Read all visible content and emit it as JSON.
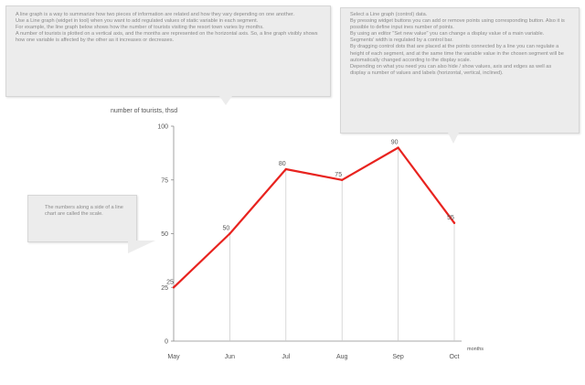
{
  "callouts": {
    "left_top": [
      "A line graph is a way to summarize how two pieces of information are related and how they vary depending on one another.",
      "Use a Line graph (widget in tool) when you want to add regulated values of static variable in each segment.",
      "For example, the line graph below shows how the number of tourists visiting the resort town varies by months.",
      "A number of tourists is plotted on a vertical axis, and the months are represented on the horizontal axis. So, a line graph visibly shows how one variable is affected by the other as it increases or decreases."
    ],
    "right_top": [
      "Select a Line graph (control) data.",
      "By pressing widget buttons you can add or remove points using corresponding button. Also it is possible to define input ines number of points.",
      "By using an editor \"Set new value\" you can change a display value of a main variable. Segments' width is regulated by a control bar.",
      "By dragging control dots that are placed at the points connected by a line you can regulate a height of each segment, and at the same time the variable value in the chosen segment will be automatically changed according to the display scale.",
      "Depending on what you need you can also hide / show values, axis and edges as well as display a number of values and labels (horizontal, vertical, inclined)."
    ],
    "axis": [
      "The numbers along a side of a line chart are called the scale."
    ]
  },
  "colors": {
    "line": "#e8231f",
    "axis": "#8c8c8c",
    "guide": "#c8c8c8",
    "text": "#555555",
    "callout_bg": "#ececec"
  },
  "chart_data": {
    "type": "line",
    "title": "",
    "ylabel": "number of tourists, thsd",
    "xlabel": "months",
    "categories": [
      "May",
      "Jun",
      "Jul",
      "Aug",
      "Sep",
      "Oct"
    ],
    "series": [
      {
        "values": [
          25,
          50,
          80,
          75,
          90,
          55
        ]
      }
    ],
    "data_labels": [
      "25",
      "50",
      "80",
      "75",
      "90",
      "55"
    ],
    "yticks": [
      0,
      25,
      50,
      75,
      100
    ],
    "ylim": [
      0,
      100
    ],
    "grid": false,
    "guides": "vertical drop lines from each point to the x-axis"
  }
}
